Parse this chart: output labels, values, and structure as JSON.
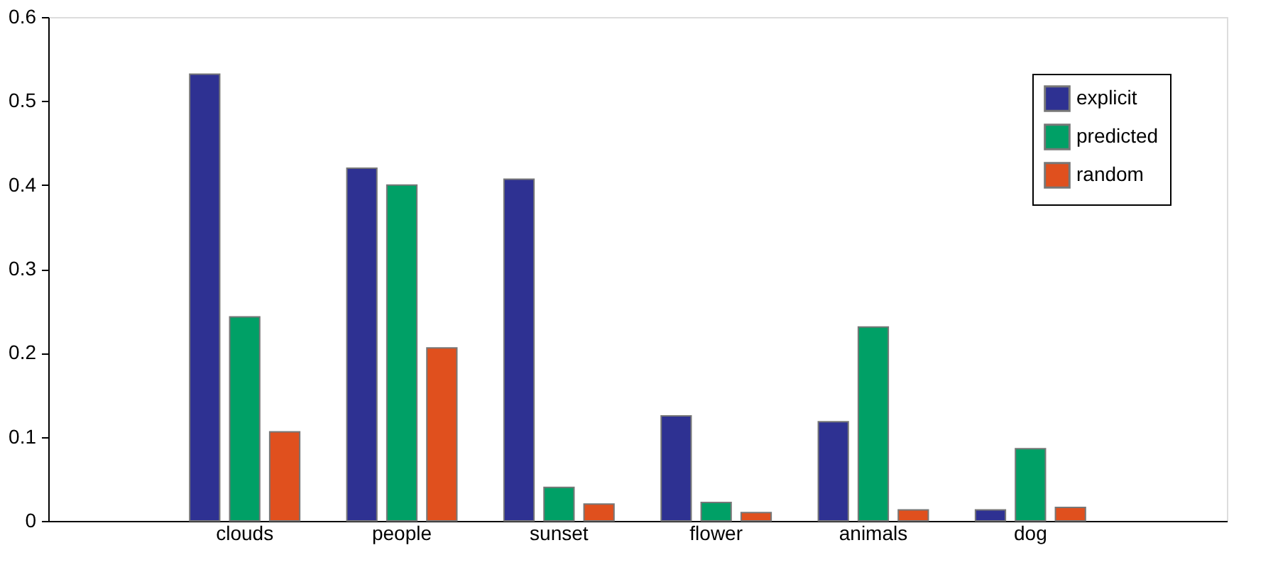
{
  "chart_data": {
    "type": "bar",
    "categories": [
      "clouds",
      "people",
      "sunset",
      "flower",
      "animals",
      "dog"
    ],
    "series": [
      {
        "name": "explicit",
        "color": "#2e3192",
        "values": [
          0.532,
          0.42,
          0.407,
          0.125,
          0.118,
          0.013
        ]
      },
      {
        "name": "predicted",
        "color": "#00a066",
        "values": [
          0.243,
          0.4,
          0.04,
          0.022,
          0.231,
          0.086
        ]
      },
      {
        "name": "random",
        "color": "#e0501e",
        "values": [
          0.106,
          0.206,
          0.02,
          0.01,
          0.013,
          0.016
        ]
      }
    ],
    "ylim": [
      0,
      0.6
    ],
    "yticks": [
      0,
      0.1,
      0.2,
      0.3,
      0.4,
      0.5,
      0.6
    ],
    "grid": false,
    "legend": "top right"
  }
}
